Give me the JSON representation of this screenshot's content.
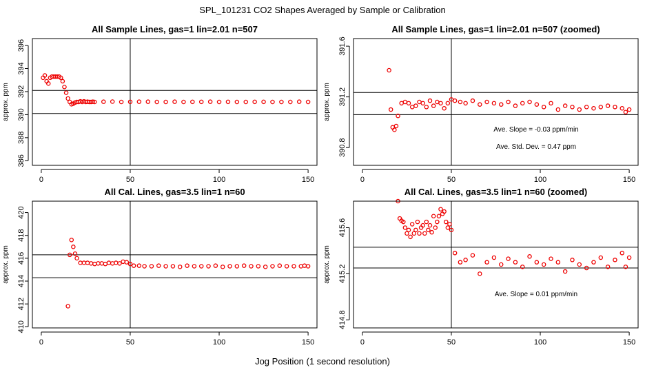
{
  "figure": {
    "title": "SPL_101231  CO2 Shapes Averaged by Sample or Calibration",
    "xlabel": "Jog Position (1 second resolution)",
    "point_color": "#ee0000"
  },
  "chart_data": [
    {
      "type": "scatter",
      "title": "All Sample Lines, gas=1 lin=2.01 n=507",
      "xlabel": "",
      "ylabel": "approx. ppm",
      "xlim": [
        -5,
        155
      ],
      "ylim": [
        385.6,
        396.6
      ],
      "xticks": [
        0,
        50,
        100,
        150
      ],
      "xtick_labels": [
        "0",
        "50",
        "100",
        "150"
      ],
      "yticks": [
        386,
        388,
        390,
        392,
        394,
        396
      ],
      "ytick_labels": [
        "386",
        "388",
        "390",
        "392",
        "394",
        "396"
      ],
      "hlines": [
        392.1,
        390.1
      ],
      "vlines": [
        50
      ],
      "annotations": [],
      "x": [
        1,
        2,
        3,
        4,
        5,
        6,
        7,
        8,
        9,
        10,
        11,
        12,
        13,
        14,
        15,
        16,
        17,
        18,
        19,
        20,
        21,
        22,
        23,
        24,
        25,
        26,
        27,
        28,
        29,
        30,
        35,
        40,
        45,
        50,
        55,
        60,
        65,
        70,
        75,
        80,
        85,
        90,
        95,
        100,
        105,
        110,
        115,
        120,
        125,
        130,
        135,
        140,
        145,
        150
      ],
      "y": [
        393.2,
        393.4,
        392.9,
        392.7,
        393.2,
        393.3,
        393.3,
        393.3,
        393.3,
        393.3,
        393.2,
        392.9,
        392.4,
        391.9,
        391.4,
        391.1,
        390.9,
        390.95,
        391.05,
        391.1,
        391.1,
        391.15,
        391.1,
        391.15,
        391.1,
        391.12,
        391.1,
        391.1,
        391.12,
        391.1,
        391.12,
        391.13,
        391.1,
        391.11,
        391.12,
        391.12,
        391.1,
        391.1,
        391.12,
        391.1,
        391.11,
        391.11,
        391.12,
        391.1,
        391.11,
        391.1,
        391.1,
        391.11,
        391.11,
        391.1,
        391.1,
        391.1,
        391.12,
        391.1
      ]
    },
    {
      "type": "scatter",
      "title": "All Sample Lines, gas=1 lin=2.01 n=507 (zoomed)",
      "xlabel": "",
      "ylabel": "approx. ppm",
      "xlim": [
        -5,
        155
      ],
      "ylim": [
        390.66,
        391.66
      ],
      "xticks": [
        0,
        50,
        100,
        150
      ],
      "xtick_labels": [
        "0",
        "50",
        "100",
        "150"
      ],
      "yticks": [
        390.8,
        391.2,
        391.6
      ],
      "ytick_labels": [
        "390.8",
        "391.2",
        "391.6"
      ],
      "hlines": [
        391.235,
        391.06
      ],
      "vlines": [
        50
      ],
      "annotations": [
        "Ave. Slope =  -0.03  ppm/min",
        "Ave. Std. Dev. =  0.47  ppm"
      ],
      "x": [
        15,
        16,
        17,
        18,
        19,
        20,
        22,
        24,
        26,
        28,
        30,
        32,
        34,
        36,
        38,
        40,
        42,
        44,
        46,
        48,
        50,
        52,
        55,
        58,
        62,
        66,
        70,
        74,
        78,
        82,
        86,
        90,
        94,
        98,
        102,
        106,
        110,
        114,
        118,
        122,
        126,
        130,
        134,
        138,
        142,
        146,
        148,
        150
      ],
      "y": [
        391.41,
        391.1,
        390.96,
        390.94,
        390.97,
        391.05,
        391.15,
        391.16,
        391.15,
        391.12,
        391.13,
        391.16,
        391.15,
        391.12,
        391.17,
        391.13,
        391.16,
        391.15,
        391.11,
        391.15,
        391.18,
        391.17,
        391.16,
        391.15,
        391.17,
        391.14,
        391.16,
        391.15,
        391.14,
        391.16,
        391.13,
        391.15,
        391.16,
        391.14,
        391.12,
        391.15,
        391.1,
        391.13,
        391.12,
        391.1,
        391.12,
        391.11,
        391.12,
        391.13,
        391.12,
        391.11,
        391.08,
        391.1
      ]
    },
    {
      "type": "scatter",
      "title": "All Cal. Lines, gas=3.5 lin=1 n=60",
      "xlabel": "",
      "ylabel": "approx. ppm",
      "xlim": [
        -5,
        155
      ],
      "ylim": [
        409.9,
        421.0
      ],
      "xticks": [
        0,
        50,
        100,
        150
      ],
      "xtick_labels": [
        "0",
        "50",
        "100",
        "150"
      ],
      "yticks": [
        410,
        412,
        414,
        416,
        418,
        420
      ],
      "ytick_labels": [
        "410",
        "412",
        "414",
        "416",
        "418",
        "420"
      ],
      "hlines": [
        416.3,
        414.3
      ],
      "vlines": [
        50
      ],
      "annotations": [],
      "x": [
        15,
        16,
        17,
        18,
        19,
        20,
        22,
        24,
        26,
        28,
        30,
        32,
        34,
        36,
        38,
        40,
        42,
        44,
        46,
        48,
        50,
        52,
        55,
        58,
        62,
        66,
        70,
        74,
        78,
        82,
        86,
        90,
        94,
        98,
        102,
        106,
        110,
        114,
        118,
        122,
        126,
        130,
        134,
        138,
        142,
        146,
        148,
        150
      ],
      "y": [
        411.8,
        416.3,
        417.6,
        417.0,
        416.4,
        416.0,
        415.6,
        415.6,
        415.6,
        415.55,
        415.5,
        415.55,
        415.55,
        415.5,
        415.6,
        415.55,
        415.6,
        415.55,
        415.7,
        415.65,
        415.5,
        415.35,
        415.35,
        415.3,
        415.3,
        415.35,
        415.3,
        415.3,
        415.25,
        415.35,
        415.3,
        415.3,
        415.3,
        415.35,
        415.25,
        415.3,
        415.3,
        415.35,
        415.3,
        415.3,
        415.25,
        415.3,
        415.35,
        415.3,
        415.3,
        415.3,
        415.35,
        415.3
      ]
    },
    {
      "type": "scatter",
      "title": "All Cal. Lines, gas=3.5 lin=1 n=60 (zoomed)",
      "xlabel": "",
      "ylabel": "approx. ppm",
      "xlim": [
        -5,
        155
      ],
      "ylim": [
        414.73,
        415.83
      ],
      "xticks": [
        0,
        50,
        100,
        150
      ],
      "xtick_labels": [
        "0",
        "50",
        "100",
        "150"
      ],
      "yticks": [
        414.8,
        415.2,
        415.6
      ],
      "ytick_labels": [
        "414.8",
        "415.2",
        "415.6"
      ],
      "hlines": [
        415.43,
        415.25
      ],
      "vlines": [
        50
      ],
      "annotations": [
        "Ave. Slope =  0.01  ppm/min"
      ],
      "x": [
        20,
        21,
        22,
        23,
        24,
        25,
        26,
        27,
        28,
        29,
        30,
        31,
        32,
        33,
        34,
        35,
        36,
        37,
        38,
        39,
        40,
        41,
        42,
        43,
        44,
        45,
        46,
        47,
        48,
        49,
        50,
        52,
        55,
        58,
        62,
        66,
        70,
        74,
        78,
        82,
        86,
        90,
        94,
        98,
        102,
        106,
        110,
        114,
        118,
        122,
        126,
        130,
        134,
        138,
        142,
        146,
        148,
        150
      ],
      "y": [
        415.83,
        415.68,
        415.66,
        415.65,
        415.6,
        415.55,
        415.58,
        415.52,
        415.63,
        415.55,
        415.58,
        415.65,
        415.55,
        415.6,
        415.62,
        415.55,
        415.65,
        415.58,
        415.62,
        415.56,
        415.7,
        415.6,
        415.65,
        415.7,
        415.76,
        415.72,
        415.74,
        415.65,
        415.6,
        415.63,
        415.58,
        415.38,
        415.3,
        415.32,
        415.36,
        415.2,
        415.3,
        415.34,
        415.28,
        415.33,
        415.3,
        415.26,
        415.35,
        415.3,
        415.28,
        415.33,
        415.3,
        415.22,
        415.32,
        415.28,
        415.25,
        415.3,
        415.34,
        415.26,
        415.32,
        415.38,
        415.26,
        415.34
      ]
    }
  ]
}
